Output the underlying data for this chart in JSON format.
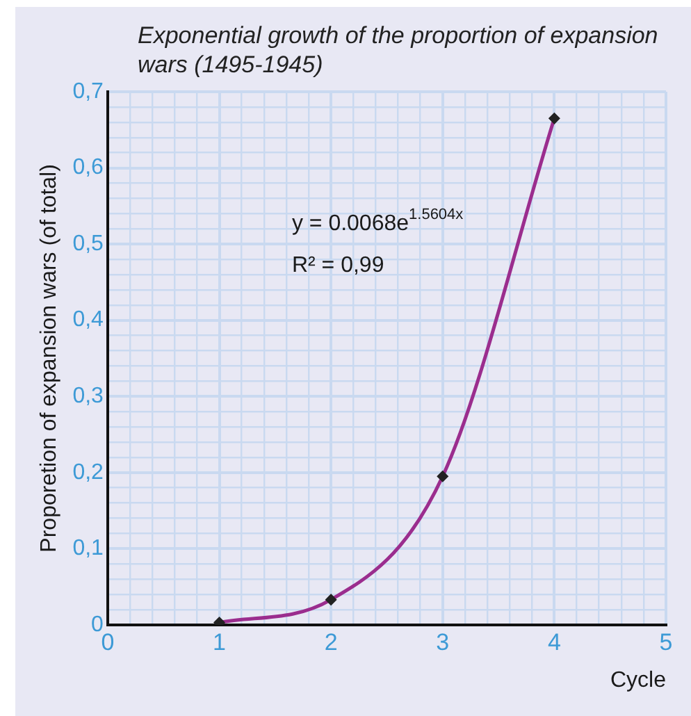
{
  "chart_data": {
    "type": "line",
    "title": "Exponential growth of the proportion of expansion wars (1495-1945)",
    "xlabel": "Cycle",
    "ylabel": "Proporetion of expansion wars (of total)",
    "x": [
      1,
      2,
      3,
      4
    ],
    "series": [
      {
        "color": "#9b2d8e",
        "values": [
          0.003,
          0.033,
          0.195,
          0.665
        ]
      }
    ],
    "marker": "diamond",
    "grid": true,
    "legend": false,
    "xlim": [
      0,
      5
    ],
    "xticks": [
      0,
      {
        "value": 0.2,
        "label": null
      },
      {
        "value": 0.4,
        "label": null
      },
      {
        "value": 0.6,
        "label": null
      },
      {
        "value": 0.8,
        "label": null
      },
      1,
      {
        "value": 1.2,
        "label": null
      },
      {
        "value": 1.4,
        "label": null
      },
      {
        "value": 1.6,
        "label": null
      },
      {
        "value": 1.8,
        "label": null
      },
      2,
      {
        "value": 2.2,
        "label": null
      },
      {
        "value": 2.4,
        "label": null
      },
      {
        "value": 2.6,
        "label": null
      },
      {
        "value": 2.8,
        "label": null
      },
      3,
      {
        "value": 3.2,
        "label": null
      },
      {
        "value": 3.4,
        "label": null
      },
      {
        "value": 3.6,
        "label": null
      },
      {
        "value": 3.8,
        "label": null
      },
      4,
      {
        "value": 4.2,
        "label": null
      },
      {
        "value": 4.4,
        "label": null
      },
      {
        "value": 4.6,
        "label": null
      },
      {
        "value": 4.8,
        "label": null
      },
      5
    ],
    "ylim": [
      0,
      0.7
    ],
    "yticks": [
      0,
      {
        "value": 0.02,
        "label": null
      },
      {
        "value": 0.04,
        "label": null
      },
      {
        "value": 0.06,
        "label": null
      },
      {
        "value": 0.08,
        "label": null
      },
      {
        "value": 0.1,
        "label": "0,1"
      },
      {
        "value": 0.12,
        "label": null
      },
      {
        "value": 0.14,
        "label": null
      },
      {
        "value": 0.16,
        "label": null
      },
      {
        "value": 0.18,
        "label": null
      },
      {
        "value": 0.2,
        "label": "0,2"
      },
      {
        "value": 0.22,
        "label": null
      },
      {
        "value": 0.24,
        "label": null
      },
      {
        "value": 0.26,
        "label": null
      },
      {
        "value": 0.28,
        "label": null
      },
      {
        "value": 0.3,
        "label": "0,3"
      },
      {
        "value": 0.32,
        "label": null
      },
      {
        "value": 0.34,
        "label": null
      },
      {
        "value": 0.36,
        "label": null
      },
      {
        "value": 0.38,
        "label": null
      },
      {
        "value": 0.4,
        "label": "0,4"
      },
      {
        "value": 0.42,
        "label": null
      },
      {
        "value": 0.44,
        "label": null
      },
      {
        "value": 0.46,
        "label": null
      },
      {
        "value": 0.48,
        "label": null
      },
      {
        "value": 0.5,
        "label": "0,5"
      },
      {
        "value": 0.52,
        "label": null
      },
      {
        "value": 0.54,
        "label": null
      },
      {
        "value": 0.56,
        "label": null
      },
      {
        "value": 0.58,
        "label": null
      },
      {
        "value": 0.6,
        "label": "0,6"
      },
      {
        "value": 0.62,
        "label": null
      },
      {
        "value": 0.64,
        "label": null
      },
      {
        "value": 0.66,
        "label": null
      },
      {
        "value": 0.68,
        "label": null
      },
      {
        "value": 0.7,
        "label": "0,7"
      }
    ],
    "annotations": [
      "y = 0.0068e$^{1.5604x}$",
      "R² = 0,99"
    ]
  }
}
